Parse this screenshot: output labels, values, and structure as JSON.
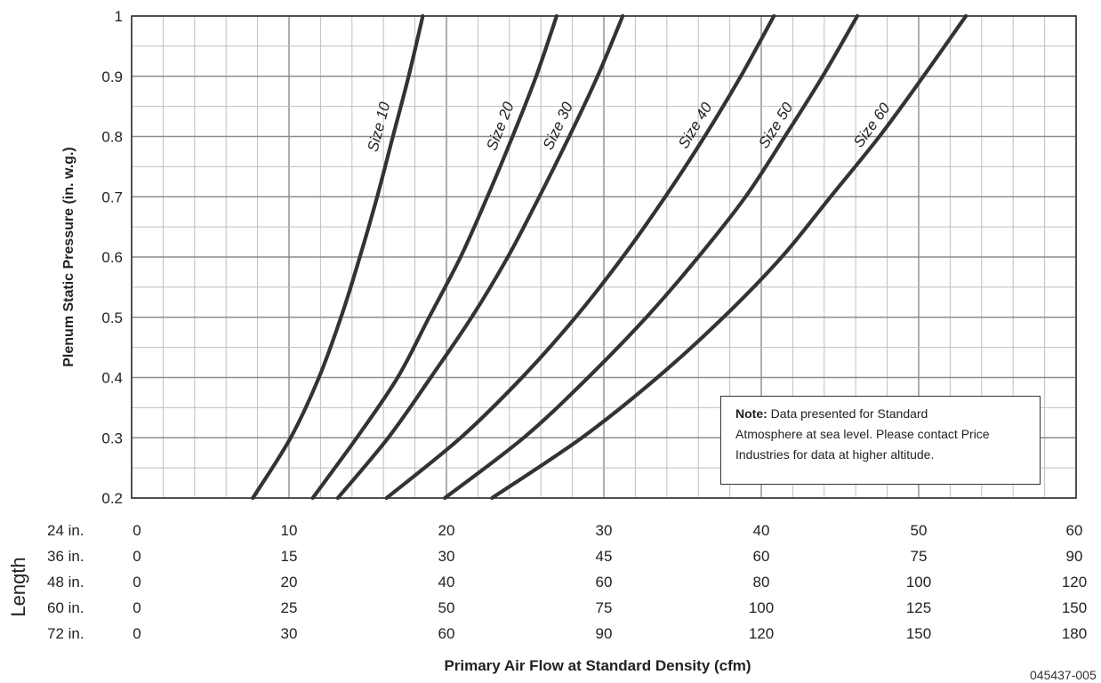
{
  "chart_data": {
    "type": "line",
    "ylabel": "Plenum Static Pressure (in. w.g.)",
    "xlabel": "Primary Air Flow at Standard Density (cfm)",
    "ylim": [
      0.2,
      1.0
    ],
    "yticks": [
      "0.2",
      "0.3",
      "0.4",
      "0.5",
      "0.6",
      "0.7",
      "0.8",
      "0.9",
      "1"
    ],
    "xlim": [
      0,
      60
    ],
    "grid": true,
    "length_axis_label": "Length",
    "x_scales": [
      {
        "label": "24 in.",
        "ticks": [
          "0",
          "10",
          "20",
          "30",
          "40",
          "50",
          "60"
        ]
      },
      {
        "label": "36 in.",
        "ticks": [
          "0",
          "15",
          "30",
          "45",
          "60",
          "75",
          "90"
        ]
      },
      {
        "label": "48 in.",
        "ticks": [
          "0",
          "20",
          "40",
          "60",
          "80",
          "100",
          "120"
        ]
      },
      {
        "label": "60 in.",
        "ticks": [
          "0",
          "25",
          "50",
          "75",
          "100",
          "125",
          "150"
        ]
      },
      {
        "label": "72 in.",
        "ticks": [
          "0",
          "30",
          "60",
          "90",
          "120",
          "150",
          "180"
        ]
      }
    ],
    "series": [
      {
        "name": "Size 10",
        "points": [
          [
            7.7,
            0.2
          ],
          [
            10.1,
            0.3
          ],
          [
            11.9,
            0.4
          ],
          [
            13.3,
            0.5
          ],
          [
            14.5,
            0.6
          ],
          [
            15.6,
            0.7
          ],
          [
            16.6,
            0.8
          ],
          [
            17.6,
            0.9
          ],
          [
            18.5,
            1.0
          ]
        ]
      },
      {
        "name": "Size 20",
        "points": [
          [
            11.5,
            0.2
          ],
          [
            14.3,
            0.3
          ],
          [
            16.9,
            0.4
          ],
          [
            18.9,
            0.5
          ],
          [
            20.9,
            0.6
          ],
          [
            22.6,
            0.7
          ],
          [
            24.2,
            0.8
          ],
          [
            25.7,
            0.9
          ],
          [
            27.0,
            1.0
          ]
        ]
      },
      {
        "name": "Size 30",
        "points": [
          [
            13.1,
            0.2
          ],
          [
            16.3,
            0.3
          ],
          [
            19.0,
            0.4
          ],
          [
            21.6,
            0.5
          ],
          [
            23.9,
            0.6
          ],
          [
            25.9,
            0.7
          ],
          [
            27.8,
            0.8
          ],
          [
            29.6,
            0.9
          ],
          [
            31.2,
            1.0
          ]
        ]
      },
      {
        "name": "Size 40",
        "points": [
          [
            16.2,
            0.2
          ],
          [
            20.9,
            0.3
          ],
          [
            24.8,
            0.4
          ],
          [
            28.2,
            0.5
          ],
          [
            31.2,
            0.6
          ],
          [
            33.9,
            0.7
          ],
          [
            36.4,
            0.8
          ],
          [
            38.7,
            0.9
          ],
          [
            40.8,
            1.0
          ]
        ]
      },
      {
        "name": "Size 50",
        "points": [
          [
            19.9,
            0.2
          ],
          [
            24.9,
            0.3
          ],
          [
            29.0,
            0.4
          ],
          [
            32.7,
            0.5
          ],
          [
            36.0,
            0.6
          ],
          [
            39.0,
            0.7
          ],
          [
            41.5,
            0.8
          ],
          [
            43.9,
            0.9
          ],
          [
            46.1,
            1.0
          ]
        ]
      },
      {
        "name": "Size 60",
        "points": [
          [
            22.9,
            0.2
          ],
          [
            28.6,
            0.3
          ],
          [
            33.4,
            0.4
          ],
          [
            37.6,
            0.5
          ],
          [
            41.3,
            0.6
          ],
          [
            44.4,
            0.7
          ],
          [
            47.5,
            0.8
          ],
          [
            50.3,
            0.9
          ],
          [
            53.0,
            1.0
          ]
        ]
      }
    ],
    "note": {
      "bold": "Note:",
      "lines": [
        " Data presented for Standard",
        "Atmosphere at sea level. Please contact Price",
        "Industries for data at higher altitude."
      ]
    },
    "figure_code": "045437-005"
  },
  "colors": {
    "curve": "#333333",
    "grid_minor": "#bfbfbf",
    "grid_major": "#8c8c8c",
    "frame": "#333333"
  }
}
